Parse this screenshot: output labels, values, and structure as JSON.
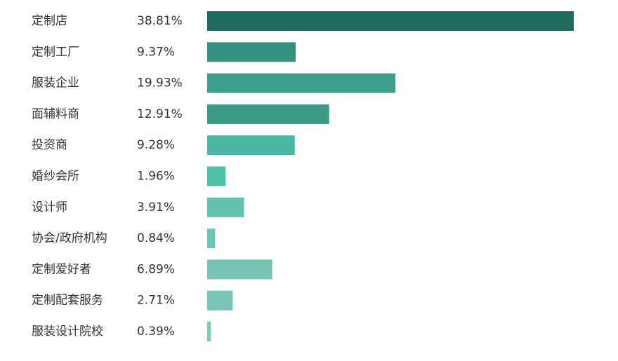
{
  "chart_data": {
    "type": "hbar",
    "categories": [
      "定制店",
      "定制工厂",
      "服装企业",
      "面辅料商",
      "投资商",
      "婚纱会所",
      "设计师",
      "协会/政府机构",
      "定制爱好者",
      "定制配套服务",
      "服装设计院校"
    ],
    "values": [
      38.81,
      9.37,
      19.93,
      12.91,
      9.28,
      1.96,
      3.91,
      0.84,
      6.89,
      2.71,
      0.39
    ],
    "value_labels": [
      "38.81%",
      "9.37%",
      "19.93%",
      "12.91%",
      "9.28%",
      "1.96%",
      "3.91%",
      "0.84%",
      "6.89%",
      "2.71%",
      "0.39%"
    ],
    "colors": [
      "#1e6b5e",
      "#35907f",
      "#3f9d8b",
      "#3b9a86",
      "#4bb8a5",
      "#4dbfaa",
      "#64c2b0",
      "#6bc4b3",
      "#76c3b3",
      "#79c5b5",
      "#7fc9b9"
    ]
  }
}
